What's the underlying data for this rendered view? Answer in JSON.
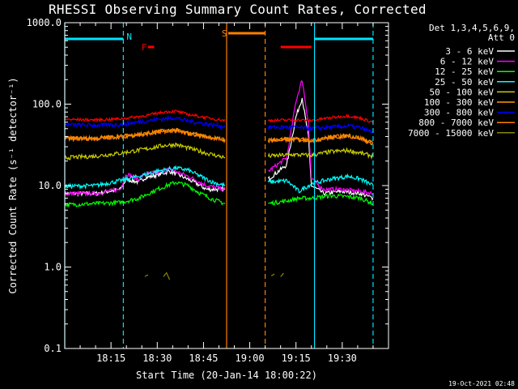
{
  "chart_data": {
    "type": "line",
    "title": "RHESSI Observing Summary Count Rates, Corrected",
    "xlabel": "Start Time (20-Jan-14 18:00:22)",
    "ylabel": "Corrected Count Rate (s⁻¹ detector⁻¹)",
    "yscale": "log",
    "ylim": [
      0.1,
      1000
    ],
    "xlim_minutes": [
      0,
      105
    ],
    "x_ticks": [
      {
        "t": 15,
        "label": "18:15"
      },
      {
        "t": 30,
        "label": "18:30"
      },
      {
        "t": 45,
        "label": "18:45"
      },
      {
        "t": 60,
        "label": "19:00"
      },
      {
        "t": 75,
        "label": "19:15"
      },
      {
        "t": 90,
        "label": "19:30"
      }
    ],
    "y_ticks": [
      {
        "v": 1000,
        "label": "1000.0"
      },
      {
        "v": 100,
        "label": "100.0"
      },
      {
        "v": 10,
        "label": "10.0"
      },
      {
        "v": 1,
        "label": "1.0"
      },
      {
        "v": 0.1,
        "label": "0.1"
      }
    ],
    "legend": {
      "header": [
        "Det 1,3,4,5,6,9,",
        "Att 0"
      ],
      "placement": "right"
    },
    "series": [
      {
        "name": "3 - 6 keV",
        "color": "#ffffff",
        "segments": [
          [
            [
              0,
              8
            ],
            [
              10,
              8
            ],
            [
              18,
              9
            ],
            [
              20,
              12
            ],
            [
              24,
              11
            ],
            [
              26,
              12.5
            ],
            [
              30,
              13.5
            ],
            [
              34,
              15
            ],
            [
              38,
              13
            ],
            [
              42,
              11
            ],
            [
              46,
              9
            ],
            [
              52,
              9
            ]
          ],
          [
            [
              66,
              12
            ],
            [
              72,
              18
            ],
            [
              75,
              70
            ],
            [
              77,
              120
            ],
            [
              79,
              40
            ],
            [
              80,
              10
            ],
            [
              84,
              8
            ],
            [
              90,
              8.5
            ],
            [
              96,
              8
            ],
            [
              100,
              7
            ]
          ]
        ]
      },
      {
        "name": "6 - 12 keV",
        "color": "#ff00ff",
        "segments": [
          [
            [
              0,
              8
            ],
            [
              10,
              8
            ],
            [
              18,
              9
            ],
            [
              20,
              14
            ],
            [
              24,
              12
            ],
            [
              26,
              14
            ],
            [
              30,
              14.5
            ],
            [
              34,
              16
            ],
            [
              38,
              14
            ],
            [
              42,
              12
            ],
            [
              46,
              10
            ],
            [
              52,
              9
            ]
          ],
          [
            [
              66,
              15
            ],
            [
              72,
              22
            ],
            [
              75,
              110
            ],
            [
              77,
              200
            ],
            [
              79,
              60
            ],
            [
              80,
              12
            ],
            [
              84,
              9
            ],
            [
              90,
              9
            ],
            [
              96,
              8.5
            ],
            [
              100,
              8
            ]
          ]
        ]
      },
      {
        "name": "12 - 25 keV",
        "color": "#00ff00",
        "segments": [
          [
            [
              0,
              5.8
            ],
            [
              10,
              6
            ],
            [
              18,
              6.2
            ],
            [
              24,
              7
            ],
            [
              30,
              9
            ],
            [
              36,
              11
            ],
            [
              40,
              10
            ],
            [
              44,
              8
            ],
            [
              48,
              6.8
            ],
            [
              52,
              6
            ]
          ],
          [
            [
              66,
              6
            ],
            [
              72,
              6.5
            ],
            [
              76,
              7
            ],
            [
              80,
              7
            ],
            [
              86,
              7.5
            ],
            [
              92,
              7.3
            ],
            [
              96,
              7
            ],
            [
              100,
              6
            ]
          ]
        ]
      },
      {
        "name": "25 - 50 keV",
        "color": "#00ffff",
        "segments": [
          [
            [
              0,
              9.8
            ],
            [
              10,
              10
            ],
            [
              18,
              11.5
            ],
            [
              24,
              13
            ],
            [
              30,
              15
            ],
            [
              36,
              16.5
            ],
            [
              40,
              15.5
            ],
            [
              44,
              13
            ],
            [
              48,
              11
            ],
            [
              52,
              10
            ]
          ],
          [
            [
              66,
              11
            ],
            [
              72,
              11.5
            ],
            [
              76,
              8.5
            ],
            [
              80,
              10.5
            ],
            [
              86,
              12
            ],
            [
              92,
              13
            ],
            [
              96,
              12
            ],
            [
              100,
              10
            ]
          ]
        ]
      },
      {
        "name": "50 - 100 keV",
        "color": "#cccc00",
        "segments": [
          [
            [
              0,
              22
            ],
            [
              10,
              23
            ],
            [
              18,
              25
            ],
            [
              26,
              28
            ],
            [
              32,
              31
            ],
            [
              36,
              32
            ],
            [
              40,
              29
            ],
            [
              46,
              25
            ],
            [
              52,
              22
            ]
          ],
          [
            [
              66,
              23
            ],
            [
              74,
              24
            ],
            [
              80,
              23.5
            ],
            [
              86,
              26
            ],
            [
              92,
              27
            ],
            [
              96,
              25
            ],
            [
              100,
              23
            ]
          ]
        ]
      },
      {
        "name": "100 - 300 keV",
        "color": "#ff9900",
        "segments": [
          [
            [
              0,
              38
            ],
            [
              10,
              38
            ],
            [
              18,
              40
            ],
            [
              26,
              43
            ],
            [
              32,
              47
            ],
            [
              36,
              48
            ],
            [
              40,
              44
            ],
            [
              46,
              40
            ],
            [
              52,
              36
            ]
          ],
          [
            [
              66,
              36
            ],
            [
              74,
              37
            ],
            [
              80,
              36
            ],
            [
              86,
              39
            ],
            [
              92,
              41
            ],
            [
              96,
              38
            ],
            [
              100,
              33
            ]
          ]
        ]
      },
      {
        "name": "300 - 800 keV",
        "color": "#0000ff",
        "segments": [
          [
            [
              0,
              56
            ],
            [
              10,
              55
            ],
            [
              18,
              56
            ],
            [
              26,
              62
            ],
            [
              32,
              66
            ],
            [
              36,
              68
            ],
            [
              40,
              62
            ],
            [
              46,
              57
            ],
            [
              52,
              53
            ]
          ],
          [
            [
              66,
              52
            ],
            [
              74,
              52
            ],
            [
              80,
              50
            ],
            [
              86,
              52
            ],
            [
              92,
              54
            ],
            [
              96,
              51
            ],
            [
              100,
              45
            ]
          ]
        ]
      },
      {
        "name": "800 - 7000 keV",
        "color": "#ff8000",
        "segments": [
          [
            [
              0,
              38
            ],
            [
              10,
              38
            ],
            [
              18,
              40
            ],
            [
              26,
              43
            ],
            [
              32,
              47
            ],
            [
              36,
              48
            ],
            [
              40,
              44
            ],
            [
              46,
              40
            ],
            [
              52,
              36
            ]
          ],
          [
            [
              66,
              36
            ],
            [
              74,
              37
            ],
            [
              80,
              36
            ],
            [
              86,
              39
            ],
            [
              92,
              41
            ],
            [
              96,
              38
            ],
            [
              100,
              33
            ]
          ]
        ]
      },
      {
        "name": "7000 - 15000 keV",
        "color": "#888800",
        "segments": [
          [
            [
              26,
              0.77
            ],
            [
              27,
              0.8
            ]
          ],
          [
            [
              32,
              0.76
            ],
            [
              33,
              0.85
            ],
            [
              34,
              0.7
            ]
          ],
          [
            [
              67,
              0.78
            ],
            [
              68,
              0.82
            ]
          ],
          [
            [
              70,
              0.76
            ],
            [
              71,
              0.84
            ]
          ]
        ]
      }
    ],
    "red_series": {
      "color": "#ff0000",
      "segments": [
        [
          [
            0,
            65
          ],
          [
            10,
            64
          ],
          [
            18,
            66
          ],
          [
            26,
            72
          ],
          [
            32,
            80
          ],
          [
            36,
            82
          ],
          [
            40,
            75
          ],
          [
            46,
            68
          ],
          [
            52,
            63
          ]
        ],
        [
          [
            66,
            63
          ],
          [
            74,
            64
          ],
          [
            80,
            63
          ],
          [
            86,
            68
          ],
          [
            92,
            72
          ],
          [
            96,
            67
          ],
          [
            100,
            60
          ]
        ]
      ]
    },
    "flags": [
      {
        "label": "N",
        "color": "#00e5ff",
        "segments": [
          [
            0,
            19
          ],
          [
            81,
            100
          ]
        ]
      },
      {
        "label": "F",
        "color": "#ff0000",
        "segments": [
          [
            27,
            29
          ],
          [
            70,
            80
          ]
        ]
      },
      {
        "label": "S",
        "color": "#ff8000",
        "segments": [
          [
            53,
            65
          ]
        ]
      }
    ],
    "vertical_lines": [
      {
        "t": 0,
        "color": "#00e5ff",
        "style": "solid"
      },
      {
        "t": 19,
        "color": "#00e5ff",
        "style": "dashed"
      },
      {
        "t": 52.5,
        "color": "#ff8000",
        "style": "solid"
      },
      {
        "t": 65,
        "color": "#ff8000",
        "style": "dashed"
      },
      {
        "t": 81,
        "color": "#00e5ff",
        "style": "solid"
      },
      {
        "t": 100,
        "color": "#00e5ff",
        "style": "dashed"
      }
    ]
  },
  "timestamp": "19-Oct-2021 02:48"
}
